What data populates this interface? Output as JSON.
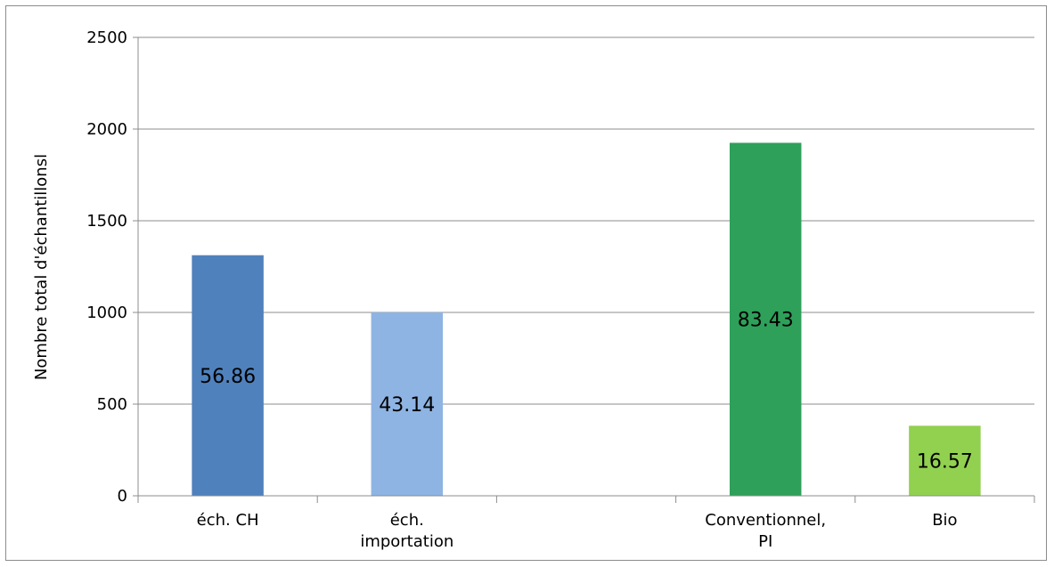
{
  "chart_data": {
    "type": "bar",
    "categories": [
      [
        "éch. CH"
      ],
      [
        "éch.",
        "importation"
      ],
      [
        ""
      ],
      [
        "Conventionnel,",
        "PI"
      ],
      [
        "Bio"
      ]
    ],
    "values": [
      1312,
      1000,
      null,
      1925,
      382
    ],
    "data_labels": [
      "56.86",
      "43.14",
      "",
      "83.43",
      "16.57"
    ],
    "bar_colors": [
      "#4f81bd",
      "#8eb4e3",
      null,
      "#2ea05a",
      "#92d050"
    ],
    "ylabel": "Nombre total d'échantillonsl",
    "xlabel": "",
    "title": "",
    "ylim": [
      0,
      2500
    ],
    "yticks": [
      "0",
      "500",
      "1000",
      "1500",
      "2000",
      "2500"
    ],
    "grid": true,
    "legend": "none"
  }
}
